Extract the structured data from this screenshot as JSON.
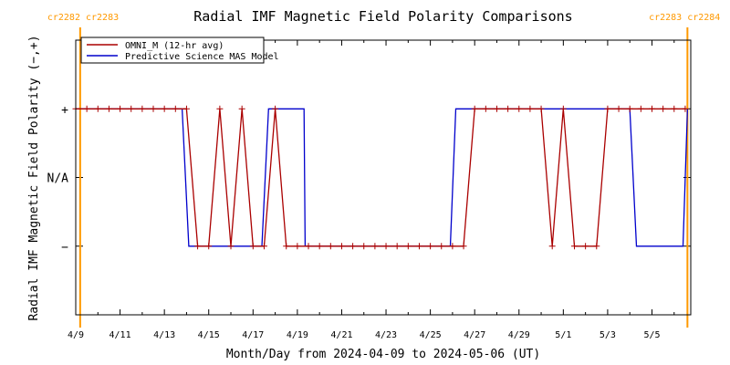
{
  "chart_data": {
    "type": "line",
    "title": "Radial IMF Magnetic Field Polarity Comparisons",
    "xlabel": "Month/Day from 2024-04-09 to 2024-05-06 (UT)",
    "ylabel": "Radial IMF Magnetic Field Polarity (−,+)",
    "xlim_days": [
      0,
      27.75
    ],
    "ylim": [
      -2,
      2
    ],
    "x_ticks": [
      {
        "day": 0,
        "label": "4/9"
      },
      {
        "day": 2,
        "label": "4/11"
      },
      {
        "day": 4,
        "label": "4/13"
      },
      {
        "day": 6,
        "label": "4/15"
      },
      {
        "day": 8,
        "label": "4/17"
      },
      {
        "day": 10,
        "label": "4/19"
      },
      {
        "day": 12,
        "label": "4/21"
      },
      {
        "day": 14,
        "label": "4/23"
      },
      {
        "day": 16,
        "label": "4/25"
      },
      {
        "day": 18,
        "label": "4/27"
      },
      {
        "day": 20,
        "label": "4/29"
      },
      {
        "day": 22,
        "label": "5/1"
      },
      {
        "day": 24,
        "label": "5/3"
      },
      {
        "day": 26,
        "label": "5/5"
      }
    ],
    "y_ticks": [
      {
        "value": 1,
        "label": "+"
      },
      {
        "value": 0,
        "label": "N/A"
      },
      {
        "value": -1,
        "label": "−"
      }
    ],
    "carrington_markers": [
      {
        "day": 0.2,
        "left_label": "cr2282",
        "right_label": "cr2283",
        "side": "left"
      },
      {
        "day": 27.6,
        "left_label": "cr2283",
        "right_label": "cr2284",
        "side": "right"
      }
    ],
    "legend": {
      "placement": "top-left"
    },
    "series": [
      {
        "name": "OMNI_M (12-hr avg)",
        "color": "#aa0000",
        "markers": true,
        "points": [
          [
            0.0,
            1
          ],
          [
            0.5,
            1
          ],
          [
            1.0,
            1
          ],
          [
            1.5,
            1
          ],
          [
            2.0,
            1
          ],
          [
            2.5,
            1
          ],
          [
            3.0,
            1
          ],
          [
            3.5,
            1
          ],
          [
            4.0,
            1
          ],
          [
            4.5,
            1
          ],
          [
            5.0,
            1
          ],
          [
            5.5,
            -1
          ],
          [
            6.0,
            -1
          ],
          [
            6.5,
            1
          ],
          [
            7.0,
            -1
          ],
          [
            7.5,
            1
          ],
          [
            8.0,
            -1
          ],
          [
            8.5,
            -1
          ],
          [
            9.0,
            1
          ],
          [
            9.5,
            -1
          ],
          [
            10.0,
            -1
          ],
          [
            10.5,
            -1
          ],
          [
            11.0,
            -1
          ],
          [
            11.5,
            -1
          ],
          [
            12.0,
            -1
          ],
          [
            12.5,
            -1
          ],
          [
            13.0,
            -1
          ],
          [
            13.5,
            -1
          ],
          [
            14.0,
            -1
          ],
          [
            14.5,
            -1
          ],
          [
            15.0,
            -1
          ],
          [
            15.5,
            -1
          ],
          [
            16.0,
            -1
          ],
          [
            16.5,
            -1
          ],
          [
            17.0,
            -1
          ],
          [
            17.5,
            -1
          ],
          [
            18.0,
            1
          ],
          [
            18.5,
            1
          ],
          [
            19.0,
            1
          ],
          [
            19.5,
            1
          ],
          [
            20.0,
            1
          ],
          [
            20.5,
            1
          ],
          [
            21.0,
            1
          ],
          [
            21.5,
            -1
          ],
          [
            22.0,
            1
          ],
          [
            22.5,
            -1
          ],
          [
            23.0,
            -1
          ],
          [
            23.5,
            -1
          ],
          [
            24.0,
            1
          ],
          [
            24.5,
            1
          ],
          [
            25.0,
            1
          ],
          [
            25.5,
            1
          ],
          [
            26.0,
            1
          ],
          [
            26.5,
            1
          ],
          [
            27.0,
            1
          ],
          [
            27.5,
            1
          ]
        ]
      },
      {
        "name": "Predictive Science MAS Model",
        "color": "#0000cc",
        "markers": false,
        "points": [
          [
            0.0,
            1
          ],
          [
            4.8,
            1
          ],
          [
            5.1,
            -1
          ],
          [
            8.4,
            -1
          ],
          [
            8.7,
            1
          ],
          [
            10.3,
            1
          ],
          [
            10.35,
            -1
          ],
          [
            16.9,
            -1
          ],
          [
            17.15,
            1
          ],
          [
            25.0,
            1
          ],
          [
            25.3,
            -1
          ],
          [
            27.4,
            -1
          ],
          [
            27.6,
            1
          ]
        ]
      }
    ]
  }
}
